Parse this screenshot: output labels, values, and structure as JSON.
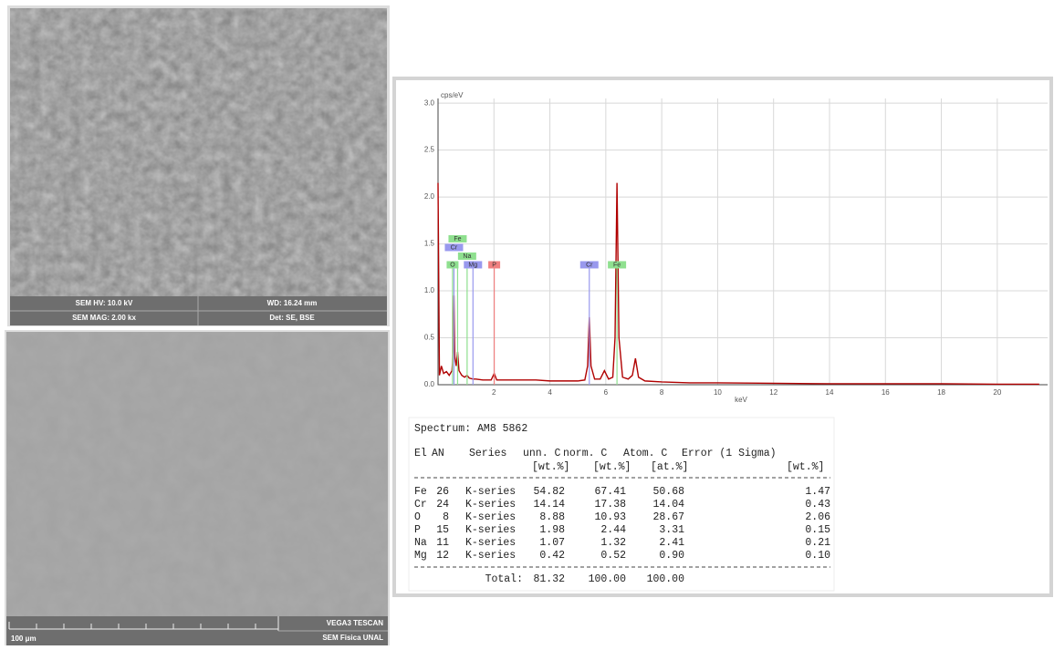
{
  "sem_top": {
    "hv": "SEM HV: 10.0 kV",
    "wd": "WD: 16.24 mm",
    "mag": "SEM MAG: 2.00 kx",
    "det": "Det: SE, BSE"
  },
  "sem_bottom": {
    "scale": "100 μm",
    "vendor": "VEGA3 TESCAN",
    "lab": "SEM Fisica UNAL"
  },
  "chart_data": {
    "type": "line",
    "ylabel": "cps/eV",
    "xlabel": "keV",
    "x": [
      0,
      0.05,
      0.12,
      0.2,
      0.3,
      0.4,
      0.5,
      0.52,
      0.55,
      0.57,
      0.6,
      0.65,
      0.7,
      0.75,
      0.85,
      0.95,
      1.04,
      1.12,
      1.25,
      1.35,
      1.6,
      1.9,
      2.01,
      2.1,
      2.5,
      3,
      3.5,
      4,
      4.5,
      5,
      5.25,
      5.35,
      5.41,
      5.47,
      5.6,
      5.8,
      5.95,
      6.1,
      6.25,
      6.33,
      6.4,
      6.47,
      6.6,
      6.8,
      6.95,
      7.06,
      7.17,
      7.4,
      8,
      9,
      10,
      12,
      14,
      16,
      18,
      20,
      21.5
    ],
    "series": [
      {
        "color": "#b00000",
        "values": [
          2.15,
          0.1,
          0.2,
          0.12,
          0.14,
          0.1,
          0.15,
          0.25,
          0.5,
          0.95,
          0.3,
          0.2,
          0.35,
          0.15,
          0.1,
          0.08,
          0.1,
          0.07,
          0.06,
          0.06,
          0.05,
          0.05,
          0.12,
          0.05,
          0.05,
          0.05,
          0.05,
          0.04,
          0.04,
          0.04,
          0.05,
          0.2,
          0.72,
          0.2,
          0.06,
          0.06,
          0.15,
          0.06,
          0.08,
          0.5,
          2.15,
          0.5,
          0.08,
          0.06,
          0.1,
          0.28,
          0.08,
          0.04,
          0.03,
          0.02,
          0.02,
          0.015,
          0.01,
          0.01,
          0.01,
          0.005,
          0.005
        ]
      }
    ],
    "annotations": [
      {
        "label": "O",
        "x": 0.52,
        "color": "#8fe08f"
      },
      {
        "label": "Na",
        "x": 1.04,
        "color": "#8fe08f"
      },
      {
        "label": "Cr",
        "x": 0.57,
        "color": "#9999ee"
      },
      {
        "label": "Mg",
        "x": 1.25,
        "color": "#9999ee"
      },
      {
        "label": "Fe",
        "x": 0.7,
        "color": "#8fe08f"
      },
      {
        "label": "P",
        "x": 2.01,
        "color": "#f08080"
      },
      {
        "label": "Cr",
        "x": 5.41,
        "color": "#9999ee"
      },
      {
        "label": "Fe",
        "x": 6.4,
        "color": "#8fe08f"
      }
    ],
    "xlim": [
      0,
      21.8
    ],
    "ylim": [
      0,
      3.05
    ],
    "xticks": [
      2,
      4,
      6,
      8,
      10,
      12,
      14,
      16,
      18,
      20
    ],
    "yticks": [
      {
        "value": 0,
        "label": "0.0"
      },
      {
        "value": 0.5,
        "label": "0.5"
      },
      {
        "value": 1,
        "label": "1.0"
      },
      {
        "value": 1.5,
        "label": "1.5"
      },
      {
        "value": 2,
        "label": "2.0"
      },
      {
        "value": 2.5,
        "label": "2.5"
      },
      {
        "value": 3,
        "label": "3.0"
      }
    ],
    "grid": true
  },
  "table": {
    "title": "Spectrum: AM8 5862",
    "header": [
      "El",
      "AN",
      "Series",
      "unn. C",
      "norm. C",
      "Atom. C",
      "Error (1 Sigma)"
    ],
    "units": [
      "[wt.%]",
      "[wt.%]",
      "[at.%]",
      "[wt.%]"
    ],
    "rows": [
      [
        "Fe",
        "26",
        "K-series",
        "54.82",
        "67.41",
        "50.68",
        "1.47"
      ],
      [
        "Cr",
        "24",
        "K-series",
        "14.14",
        "17.38",
        "14.04",
        "0.43"
      ],
      [
        "O",
        "8",
        "K-series",
        "8.88",
        "10.93",
        "28.67",
        "2.06"
      ],
      [
        "P",
        "15",
        "K-series",
        "1.98",
        "2.44",
        "3.31",
        "0.15"
      ],
      [
        "Na",
        "11",
        "K-series",
        "1.07",
        "1.32",
        "2.41",
        "0.21"
      ],
      [
        "Mg",
        "12",
        "K-series",
        "0.42",
        "0.52",
        "0.90",
        "0.10"
      ]
    ],
    "total": [
      "Total:",
      "81.32",
      "100.00",
      "100.00"
    ]
  }
}
